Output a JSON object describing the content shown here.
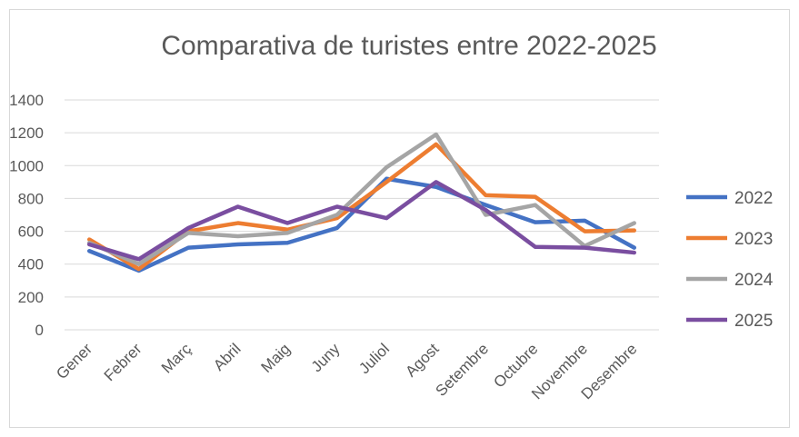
{
  "chart_data": {
    "type": "line",
    "title": "Comparativa de turistes entre 2022-2025",
    "categories": [
      "Gener",
      "Febrer",
      "Març",
      "Abril",
      "Maig",
      "Juny",
      "Juliol",
      "Agost",
      "Setembre",
      "Octubre",
      "Novembre",
      "Desembre"
    ],
    "series": [
      {
        "name": "2022",
        "color": "#4472c4",
        "values": [
          480,
          360,
          500,
          520,
          530,
          620,
          920,
          870,
          760,
          655,
          665,
          500
        ]
      },
      {
        "name": "2023",
        "color": "#ed7d31",
        "values": [
          550,
          370,
          600,
          650,
          610,
          680,
          900,
          1130,
          820,
          810,
          600,
          605
        ]
      },
      {
        "name": "2024",
        "color": "#a5a5a5",
        "values": [
          530,
          400,
          590,
          570,
          590,
          700,
          990,
          1190,
          700,
          760,
          510,
          650
        ]
      },
      {
        "name": "2025",
        "color": "#7a4ea0",
        "values": [
          520,
          430,
          620,
          750,
          650,
          750,
          680,
          900,
          730,
          505,
          500,
          470
        ]
      }
    ],
    "ylim": [
      0,
      1400
    ],
    "yticks": [
      0,
      200,
      400,
      600,
      800,
      1000,
      1200,
      1400
    ],
    "grid": true,
    "legend": "right"
  }
}
